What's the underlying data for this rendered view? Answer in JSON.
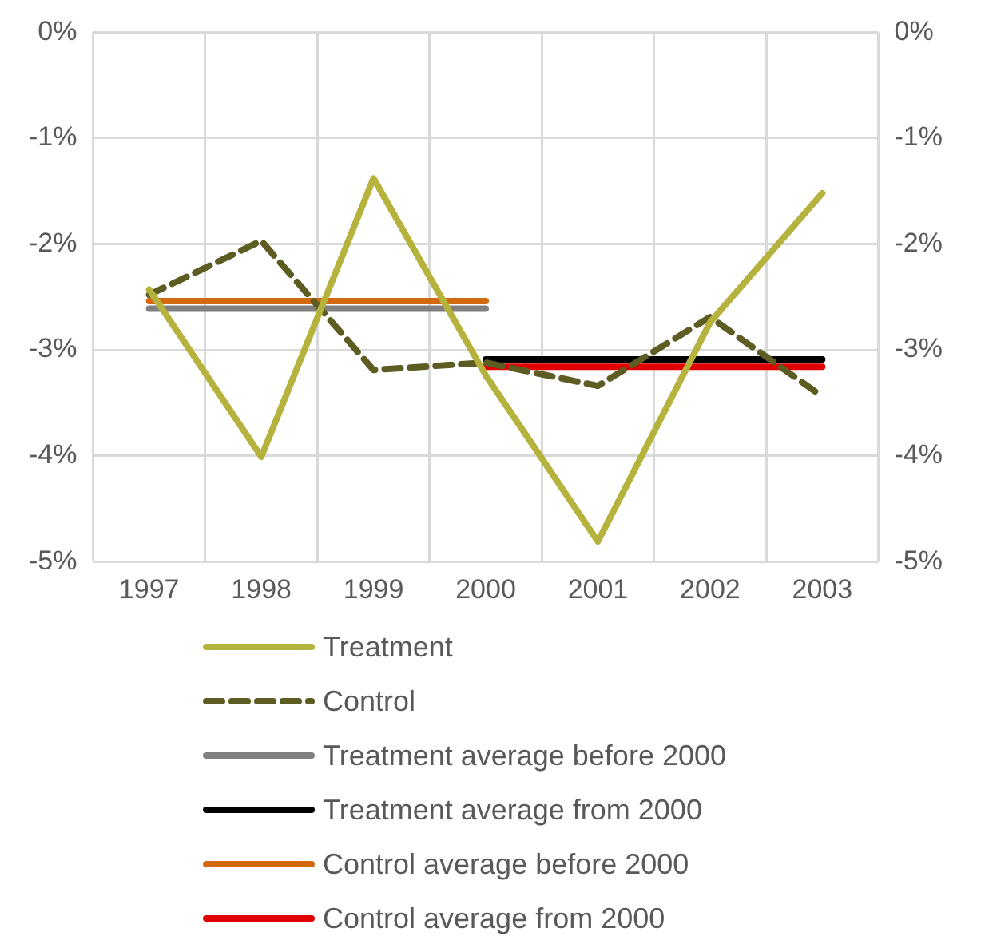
{
  "chart_data": {
    "type": "line",
    "categories": [
      "1997",
      "1998",
      "1999",
      "2000",
      "2001",
      "2002",
      "2003"
    ],
    "series": [
      {
        "name": "Treatment",
        "color": "#b5b33e",
        "line_style": "solid",
        "values": [
          -2.43,
          -4.01,
          -1.38,
          -3.24,
          -4.81,
          -2.74,
          -1.52
        ]
      },
      {
        "name": "Control",
        "color": "#5c5c23",
        "line_style": "dashed",
        "values": [
          -2.48,
          -1.97,
          -3.19,
          -3.12,
          -3.34,
          -2.69,
          -3.44
        ]
      },
      {
        "name": "Treatment average before 2000",
        "color": "#808080",
        "line_style": "solid",
        "values": [
          -2.61,
          -2.61,
          -2.61,
          -2.61,
          null,
          null,
          null
        ]
      },
      {
        "name": "Treatment average from 2000",
        "color": "#000000",
        "line_style": "solid",
        "values": [
          null,
          null,
          null,
          -3.09,
          -3.09,
          -3.09,
          -3.09
        ]
      },
      {
        "name": "Control average before 2000",
        "color": "#d3690f",
        "line_style": "solid",
        "values": [
          -2.54,
          -2.54,
          -2.54,
          -2.54,
          null,
          null,
          null
        ]
      },
      {
        "name": "Control average from 2000",
        "color": "#e00000",
        "line_style": "solid",
        "values": [
          null,
          null,
          null,
          -3.16,
          -3.16,
          -3.16,
          -3.16
        ]
      }
    ],
    "ylim": [
      -5,
      0
    ],
    "yticks": [
      {
        "value": 0,
        "label": "0%"
      },
      {
        "value": -1,
        "label": "-1%"
      },
      {
        "value": -2,
        "label": "-2%"
      },
      {
        "value": -3,
        "label": "-3%"
      },
      {
        "value": -4,
        "label": "-4%"
      },
      {
        "value": -5,
        "label": "-5%"
      }
    ],
    "y2lim": [
      -5,
      0
    ],
    "y2ticks": [
      {
        "value": 0,
        "label": "0%"
      },
      {
        "value": -1,
        "label": "-1%"
      },
      {
        "value": -2,
        "label": "-2%"
      },
      {
        "value": -3,
        "label": "-3%"
      },
      {
        "value": -4,
        "label": "-4%"
      },
      {
        "value": -5,
        "label": "-5%"
      }
    ],
    "grid": true,
    "legend": "bottom",
    "marker": "none"
  }
}
